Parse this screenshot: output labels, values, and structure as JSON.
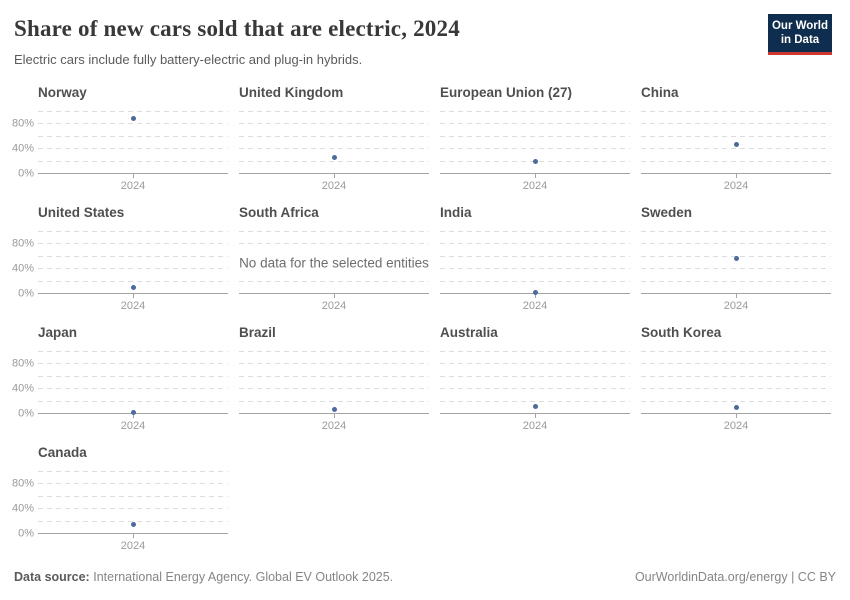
{
  "header": {
    "title": "Share of new cars sold that are electric, 2024",
    "subtitle": "Electric cars include fully battery-electric and plug-in hybrids.",
    "logo": {
      "line1": "Our World",
      "line2": "in Data",
      "bg_color": "#0f2d4e",
      "accent_color": "#cd372d"
    }
  },
  "chart_data": {
    "type": "scatter",
    "title": "Share of new cars sold that are electric, 2024",
    "x": [
      2024
    ],
    "x_tick_label": "2024",
    "ylim": [
      0,
      100
    ],
    "gridline_step": 20,
    "grid": "dashed-horizontal",
    "y_ticks": [
      {
        "label": "0%",
        "value": 0
      },
      {
        "label": "40%",
        "value": 40
      },
      {
        "label": "80%",
        "value": 80
      }
    ],
    "point_color": "#4c6a9c",
    "no_data_message": "No data for the selected entities",
    "facets": [
      {
        "name": "Norway",
        "value": 90
      },
      {
        "name": "United Kingdom",
        "value": 27
      },
      {
        "name": "European Union (27)",
        "value": 20
      },
      {
        "name": "China",
        "value": 47
      },
      {
        "name": "United States",
        "value": 10
      },
      {
        "name": "South Africa",
        "value": null
      },
      {
        "name": "India",
        "value": 2
      },
      {
        "name": "Sweden",
        "value": 58
      },
      {
        "name": "Japan",
        "value": 3
      },
      {
        "name": "Brazil",
        "value": 7
      },
      {
        "name": "Australia",
        "value": 12
      },
      {
        "name": "South Korea",
        "value": 10
      },
      {
        "name": "Canada",
        "value": 16
      }
    ]
  },
  "footer": {
    "source_label": "Data source:",
    "source_text": "International Energy Agency. Global EV Outlook 2025.",
    "link": "OurWorldinData.org/energy",
    "separator": "|",
    "license": "CC BY"
  }
}
